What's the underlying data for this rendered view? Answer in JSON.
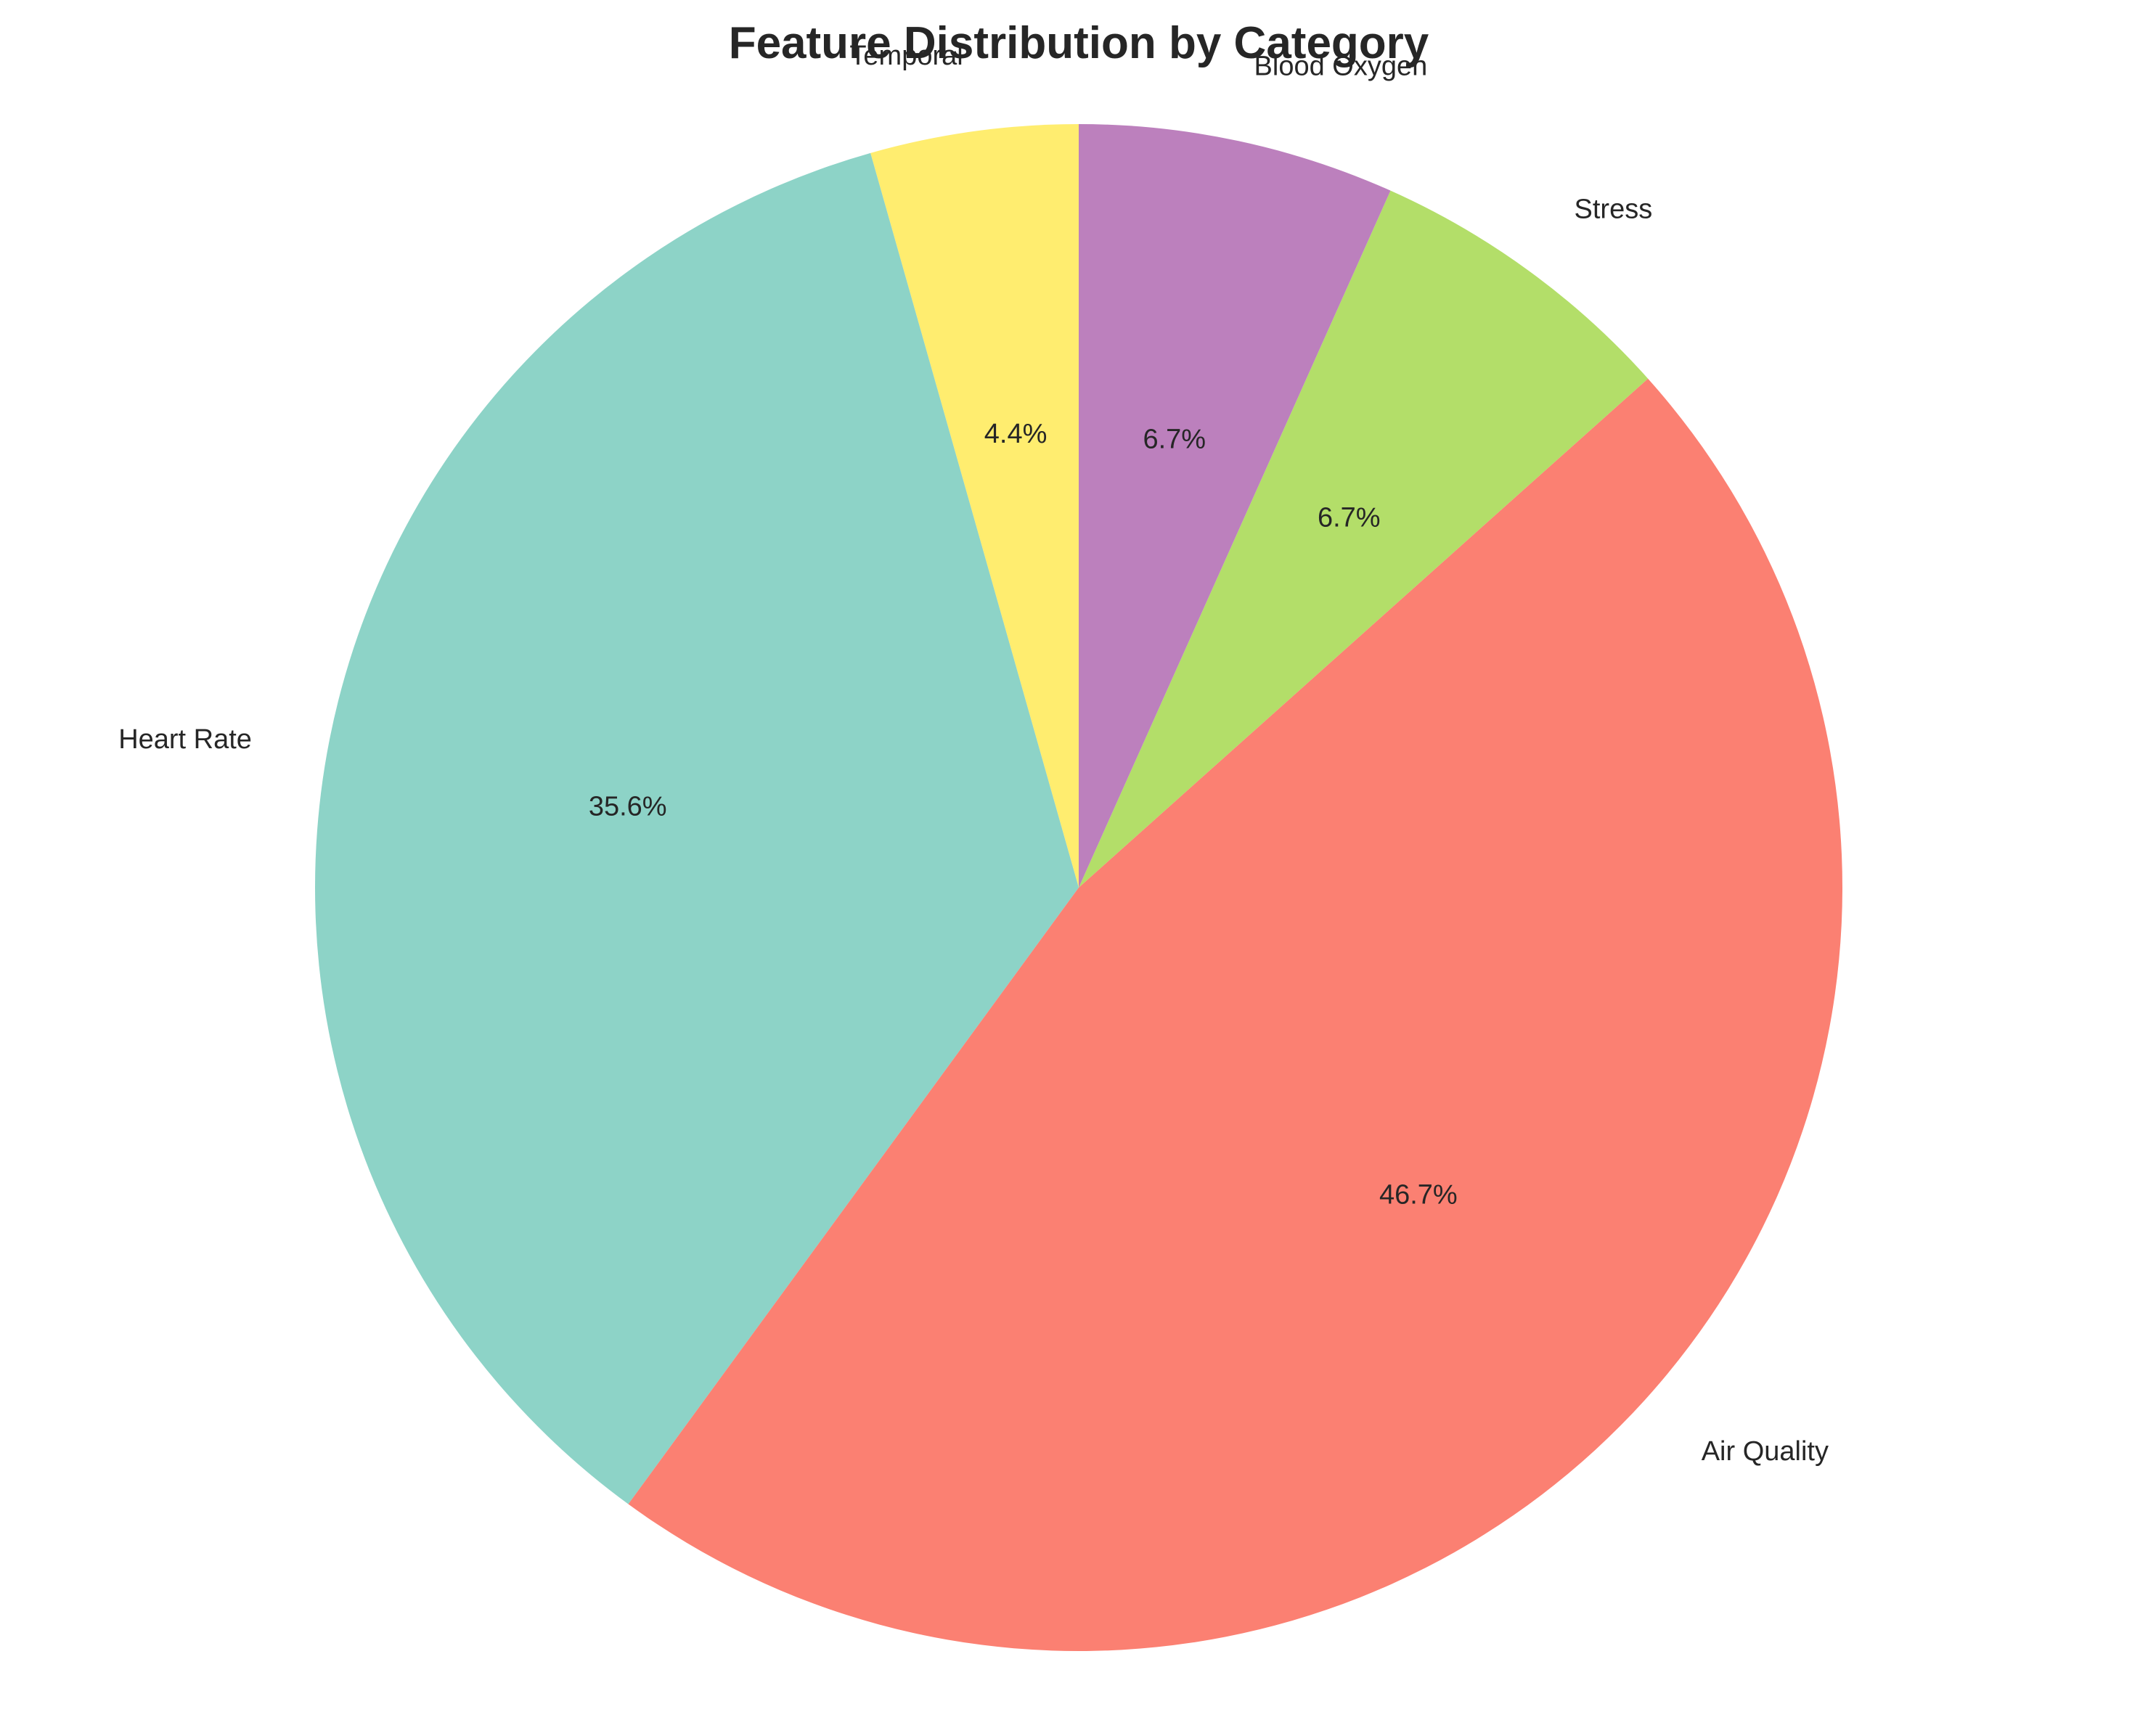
{
  "chart_data": {
    "type": "pie",
    "title": "Feature Distribution by Category",
    "start_angle_deg": 90,
    "direction": "counterclockwise",
    "slices": [
      {
        "label": "Temporal",
        "value": 4.4,
        "pct_label": "4.4%",
        "color": "#ffed6f"
      },
      {
        "label": "Heart Rate",
        "value": 35.6,
        "pct_label": "35.6%",
        "color": "#8dd3c7"
      },
      {
        "label": "Air Quality",
        "value": 46.7,
        "pct_label": "46.7%",
        "color": "#fb8072"
      },
      {
        "label": "Stress",
        "value": 6.7,
        "pct_label": "6.7%",
        "color": "#b3de69"
      },
      {
        "label": "Blood Oxygen",
        "value": 6.7,
        "pct_label": "6.7%",
        "color": "#bc80bd"
      }
    ]
  }
}
